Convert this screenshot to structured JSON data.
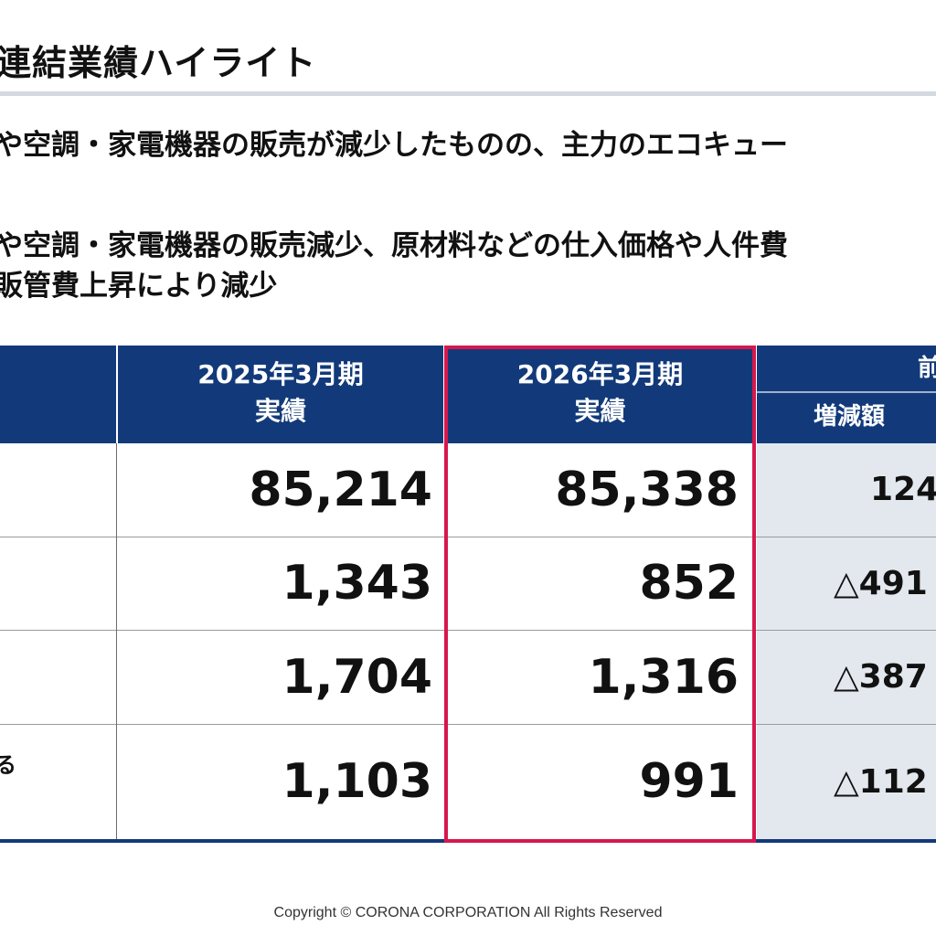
{
  "title": "連結業績ハイライト",
  "bullets": [
    "や空調・家電機器の販売が減少したものの、主力のエコキュー",
    "や空調・家電機器の販売減少、原材料などの仕入価格や人件費",
    "販管費上昇により減少"
  ],
  "table": {
    "headers": {
      "fy2025": [
        "2025年3月期",
        "実績"
      ],
      "fy2026": [
        "2026年3月期",
        "実績"
      ],
      "comparison_top": "前",
      "comparison_sub": "増減額"
    },
    "rows": [
      {
        "label": "",
        "fy2025": "85,214",
        "fy2026": "85,338",
        "change": "124"
      },
      {
        "label": "",
        "fy2025": "1,343",
        "fy2026": "852",
        "change": "△491"
      },
      {
        "label": "",
        "fy2025": "1,704",
        "fy2026": "1,316",
        "change": "△387"
      },
      {
        "label": "る",
        "fy2025": "1,103",
        "fy2026": "991",
        "change": "△112"
      }
    ]
  },
  "footer": "Copyright © CORONA CORPORATION All Rights Reserved",
  "colors": {
    "header_bg": "#123a7a",
    "highlight_border": "#d6184d",
    "change_cell_bg": "#e3e8ee",
    "title_rule": "#d3d9de"
  }
}
